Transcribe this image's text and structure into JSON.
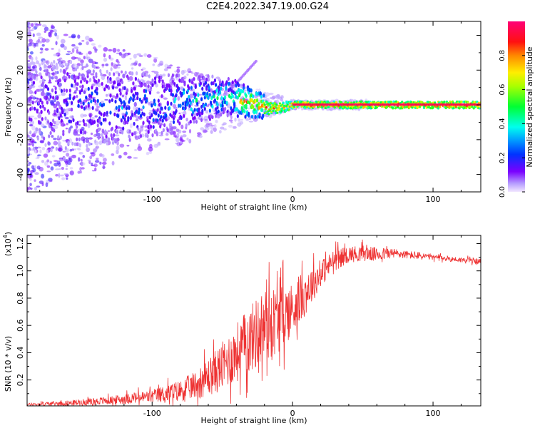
{
  "chart_data": [
    {
      "type": "heatmap",
      "title": "C2E4.2022.347.19.00.G24",
      "xlabel": "Height of straight line (km)",
      "ylabel": "Frequency (Hz)",
      "xlim": [
        -189,
        134
      ],
      "ylim": [
        -50,
        48
      ],
      "xticks": [
        -100,
        0,
        100
      ],
      "yticks": [
        -40,
        -20,
        0,
        20,
        40
      ],
      "colorbar": {
        "label": "Normalized spectral amplitude",
        "range": [
          0,
          1
        ],
        "ticks": [
          "0.0",
          "0.2",
          "0.4",
          "0.6",
          "0.8"
        ],
        "tick_values": [
          0.0,
          0.2,
          0.4,
          0.6,
          0.8
        ]
      },
      "ridge": {
        "description_points_x": [
          -189,
          -150,
          -120,
          -100,
          -80,
          -60,
          -45,
          -35,
          -25,
          -15,
          -5,
          0,
          20,
          60,
          134
        ],
        "center_freq_hz": [
          0,
          0,
          -1,
          0,
          2,
          4,
          5,
          2,
          0,
          -2,
          -1,
          0,
          0,
          0,
          0
        ],
        "peak_amplitude": [
          0.15,
          0.25,
          0.3,
          0.35,
          0.4,
          0.45,
          0.5,
          0.8,
          0.85,
          0.8,
          0.75,
          0.85,
          0.9,
          0.92,
          0.95
        ]
      }
    },
    {
      "type": "line",
      "xlabel": "Height of straight line (km)",
      "ylabel": "SNR (10 * v/v)",
      "y_multiplier": "(x10",
      "y_multiplier_exp": "4",
      "y_multiplier_close": ")",
      "xlim": [
        -189,
        134
      ],
      "ylim": [
        0.01,
        1.26
      ],
      "xticks": [
        -100,
        0,
        100
      ],
      "yticks": [
        0.2,
        0.4,
        0.6,
        0.8,
        1.0,
        1.2
      ],
      "series": [
        {
          "name": "SNR",
          "color": "#ee3333",
          "trend_x": [
            -189,
            -160,
            -130,
            -100,
            -80,
            -70,
            -60,
            -50,
            -40,
            -30,
            -20,
            -10,
            0,
            10,
            20,
            30,
            40,
            50,
            60,
            70,
            80,
            90,
            100,
            110,
            120,
            134
          ],
          "trend_y": [
            0.02,
            0.03,
            0.05,
            0.08,
            0.12,
            0.16,
            0.22,
            0.3,
            0.4,
            0.5,
            0.6,
            0.65,
            0.72,
            0.85,
            0.98,
            1.08,
            1.12,
            1.13,
            1.12,
            1.13,
            1.12,
            1.11,
            1.1,
            1.09,
            1.08,
            1.07
          ],
          "noise_amp_y": [
            0.01,
            0.02,
            0.03,
            0.05,
            0.08,
            0.1,
            0.14,
            0.18,
            0.22,
            0.25,
            0.28,
            0.25,
            0.2,
            0.16,
            0.1,
            0.08,
            0.06,
            0.06,
            0.05,
            0.04,
            0.03,
            0.03,
            0.02,
            0.02,
            0.02,
            0.02
          ]
        }
      ]
    }
  ]
}
